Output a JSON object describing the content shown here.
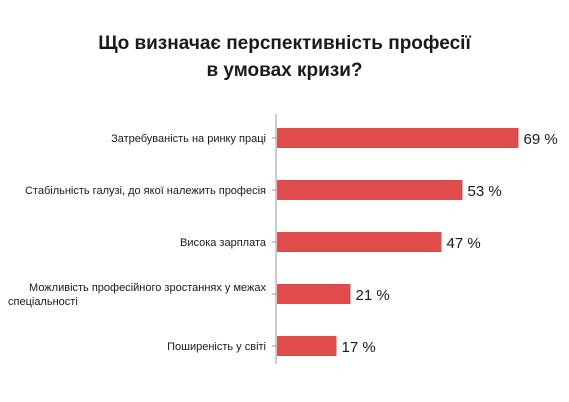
{
  "chart_data": {
    "type": "bar",
    "orientation": "horizontal",
    "title_lines": [
      "Що визначає перспективність професії",
      "в умовах кризи?"
    ],
    "categories": [
      [
        "Затребуваність на ринку праці"
      ],
      [
        "Стабільність галузі, до якої належить професія"
      ],
      [
        "Висока зарплата"
      ],
      [
        "Можливість професійного зростаннях у межах",
        "спеціальності"
      ],
      [
        "Поширеність у світі"
      ]
    ],
    "values": [
      69,
      53,
      47,
      21,
      17
    ],
    "value_labels": [
      "69 %",
      "53 %",
      "47 %",
      "21 %",
      "17 %"
    ],
    "bar_color": "#e04b4b",
    "axis_color": "#999999",
    "xlim": [
      0,
      100
    ],
    "grid": false,
    "legend": "none"
  }
}
